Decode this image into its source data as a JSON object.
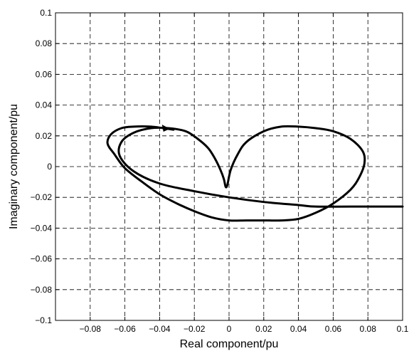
{
  "chart_data": {
    "type": "line",
    "title": "",
    "xlabel": "Real component/pu",
    "ylabel": "Imaginary component/pu",
    "xlim": [
      -0.1,
      0.1
    ],
    "ylim": [
      -0.1,
      0.1
    ],
    "grid": true,
    "x_tick_labels": [
      "-0.08",
      "-0.06",
      "-0.04",
      "-0.02",
      "0",
      "0.02",
      "0.04",
      "0.06",
      "0.08",
      "0.1"
    ],
    "y_tick_labels": [
      "-0.1",
      "-0.08",
      "-0.06",
      "-0.04",
      "-0.02",
      "0",
      "0.02",
      "0.04",
      "0.06",
      "0.08",
      "0.1"
    ],
    "series": [
      {
        "x": [
          0.1,
          0.07,
          0.05,
          0.04,
          0.02,
          0.0,
          -0.02,
          -0.04,
          -0.055,
          -0.063,
          -0.062,
          -0.055,
          -0.045,
          -0.035,
          -0.025,
          -0.018,
          -0.012,
          -0.008,
          -0.005,
          -0.003,
          -0.002,
          -0.001,
          0.001,
          0.005,
          0.01,
          0.02,
          0.03,
          0.04,
          0.05,
          0.06,
          0.07,
          0.077,
          0.078,
          0.075,
          0.07,
          0.06,
          0.05,
          0.04,
          0.03,
          0.02,
          0.01,
          0.0,
          -0.01,
          -0.02,
          -0.03,
          -0.04,
          -0.05,
          -0.06,
          -0.066,
          -0.07,
          -0.068,
          -0.062,
          -0.055,
          -0.045,
          -0.038,
          -0.032
        ],
        "y": [
          -0.026,
          -0.026,
          -0.026,
          -0.025,
          -0.023,
          -0.02,
          -0.016,
          -0.011,
          -0.003,
          0.007,
          0.016,
          0.022,
          0.025,
          0.025,
          0.023,
          0.018,
          0.012,
          0.005,
          -0.002,
          -0.008,
          -0.013,
          -0.012,
          -0.002,
          0.008,
          0.016,
          0.023,
          0.026,
          0.026,
          0.025,
          0.023,
          0.018,
          0.01,
          0.002,
          -0.007,
          -0.015,
          -0.024,
          -0.03,
          -0.034,
          -0.035,
          -0.035,
          -0.035,
          -0.035,
          -0.033,
          -0.029,
          -0.024,
          -0.018,
          -0.01,
          -0.001,
          0.008,
          0.015,
          0.021,
          0.025,
          0.026,
          0.026,
          0.025,
          0.024
        ],
        "arrow_at": [
          -0.037,
          0.025
        ]
      }
    ]
  }
}
